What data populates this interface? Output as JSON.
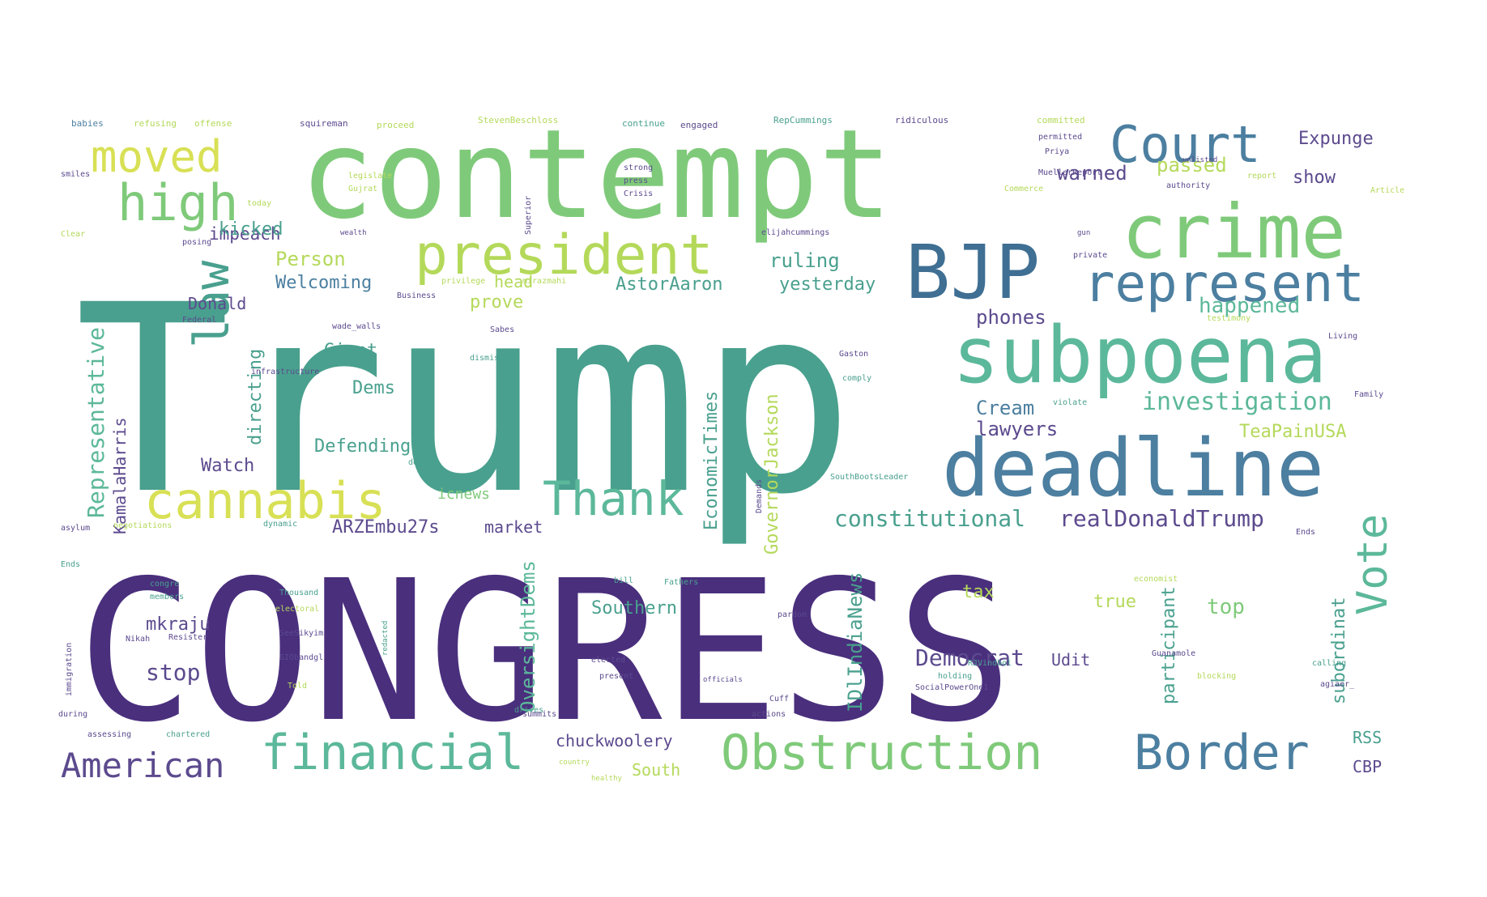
{
  "palette": {
    "dark_purple": "#4a2f7d",
    "purple": "#5c4a8e",
    "blue": "#3f6f93",
    "steel": "#4c7fa0",
    "teal": "#49a08e",
    "teal_light": "#5cb89a",
    "green": "#7fca7a",
    "lime": "#b4d95a",
    "yellow": "#d8e055"
  },
  "words": [
    {
      "text": "CONGRESS",
      "color": "dark_purple"
    },
    {
      "text": "Trump",
      "color": "teal"
    },
    {
      "text": "contempt",
      "color": "green"
    },
    {
      "text": "crime",
      "color": "green"
    },
    {
      "text": "subpoena",
      "color": "teal_light"
    },
    {
      "text": "deadline",
      "color": "steel"
    },
    {
      "text": "BJP",
      "color": "blue"
    },
    {
      "text": "president",
      "color": "lime"
    },
    {
      "text": "represent",
      "color": "steel"
    },
    {
      "text": "Court",
      "color": "steel"
    },
    {
      "text": "moved",
      "color": "yellow"
    },
    {
      "text": "high",
      "color": "green"
    },
    {
      "text": "cannabis",
      "color": "yellow"
    },
    {
      "text": "Thank",
      "color": "teal_light"
    },
    {
      "text": "law",
      "color": "teal"
    },
    {
      "text": "financial",
      "color": "teal_light"
    },
    {
      "text": "Obstruction",
      "color": "green"
    },
    {
      "text": "Border",
      "color": "steel"
    },
    {
      "text": "American",
      "color": "purple"
    },
    {
      "text": "Vote",
      "color": "teal_light"
    },
    {
      "text": "Expunge",
      "color": "purple"
    },
    {
      "text": "warned",
      "color": "purple"
    },
    {
      "text": "passed",
      "color": "lime"
    },
    {
      "text": "show",
      "color": "purple"
    },
    {
      "text": "impeach",
      "color": "purple"
    },
    {
      "text": "kicked",
      "color": "teal"
    },
    {
      "text": "Person",
      "color": "lime"
    },
    {
      "text": "Welcoming",
      "color": "steel"
    },
    {
      "text": "head",
      "color": "lime"
    },
    {
      "text": "AstorAaron",
      "color": "teal"
    },
    {
      "text": "ruling",
      "color": "teal"
    },
    {
      "text": "yesterday",
      "color": "teal"
    },
    {
      "text": "phones",
      "color": "purple"
    },
    {
      "text": "happened",
      "color": "teal_light"
    },
    {
      "text": "Donald",
      "color": "purple"
    },
    {
      "text": "prove",
      "color": "lime"
    },
    {
      "text": "investigation",
      "color": "teal_light"
    },
    {
      "text": "Cream",
      "color": "steel"
    },
    {
      "text": "lawyers",
      "color": "purple"
    },
    {
      "text": "TeaPainUSA",
      "color": "lime"
    },
    {
      "text": "Giant",
      "color": "teal"
    },
    {
      "text": "Dems",
      "color": "teal"
    },
    {
      "text": "Defending",
      "color": "teal"
    },
    {
      "text": "Watch",
      "color": "purple"
    },
    {
      "text": "Representative",
      "color": "teal_light"
    },
    {
      "text": "KamalaHarris",
      "color": "purple"
    },
    {
      "text": "directing",
      "color": "teal"
    },
    {
      "text": "EconomicTimes",
      "color": "teal"
    },
    {
      "text": "GovernorJackson",
      "color": "lime"
    },
    {
      "text": "constitutional",
      "color": "teal"
    },
    {
      "text": "realDonaldTrump",
      "color": "purple"
    },
    {
      "text": "ARZEmbu27s",
      "color": "purple"
    },
    {
      "text": "market",
      "color": "purple"
    },
    {
      "text": "icnews",
      "color": "green"
    },
    {
      "text": "tax",
      "color": "lime"
    },
    {
      "text": "true",
      "color": "lime"
    },
    {
      "text": "top",
      "color": "green"
    },
    {
      "text": "Southern",
      "color": "teal"
    },
    {
      "text": "participant",
      "color": "teal"
    },
    {
      "text": "subordinat",
      "color": "teal"
    },
    {
      "text": "mkraju",
      "color": "purple"
    },
    {
      "text": "stop",
      "color": "purple"
    },
    {
      "text": "Democrat",
      "color": "purple"
    },
    {
      "text": "Udit",
      "color": "purple"
    },
    {
      "text": "OversightDems",
      "color": "teal_light"
    },
    {
      "text": "IDlIndiaNews",
      "color": "teal"
    },
    {
      "text": "chuckwoolery",
      "color": "purple"
    },
    {
      "text": "South",
      "color": "lime"
    },
    {
      "text": "RSS",
      "color": "teal"
    },
    {
      "text": "CBP",
      "color": "purple"
    },
    {
      "text": "babies",
      "color": "steel"
    },
    {
      "text": "refusing",
      "color": "lime"
    },
    {
      "text": "offense",
      "color": "lime"
    },
    {
      "text": "squireman",
      "color": "purple"
    },
    {
      "text": "proceed",
      "color": "lime"
    },
    {
      "text": "StevenBeschloss",
      "color": "lime"
    },
    {
      "text": "continue",
      "color": "teal"
    },
    {
      "text": "engaged",
      "color": "purple"
    },
    {
      "text": "RepCummings",
      "color": "teal"
    },
    {
      "text": "ridiculous",
      "color": "purple"
    },
    {
      "text": "committed",
      "color": "lime"
    },
    {
      "text": "permitted",
      "color": "purple"
    },
    {
      "text": "Priya",
      "color": "purple"
    },
    {
      "text": "Gujrat",
      "color": "lime"
    },
    {
      "text": "legislate",
      "color": "lime"
    },
    {
      "text": "wealth",
      "color": "purple"
    },
    {
      "text": "elijahcummings",
      "color": "purple"
    },
    {
      "text": "MuellerReport",
      "color": "purple"
    },
    {
      "text": "authority",
      "color": "purple"
    },
    {
      "text": "Article",
      "color": "lime"
    },
    {
      "text": "private",
      "color": "purple"
    },
    {
      "text": "Federal",
      "color": "purple"
    },
    {
      "text": "Business",
      "color": "purple"
    },
    {
      "text": "privilege",
      "color": "lime"
    },
    {
      "text": "mirazmahi",
      "color": "lime"
    },
    {
      "text": "infrastructure",
      "color": "purple"
    },
    {
      "text": "wade_walls",
      "color": "purple"
    },
    {
      "text": "dismisses",
      "color": "teal"
    },
    {
      "text": "Sabes",
      "color": "purple"
    },
    {
      "text": "Gaston",
      "color": "purple"
    },
    {
      "text": "comply",
      "color": "teal"
    },
    {
      "text": "violate",
      "color": "teal"
    },
    {
      "text": "Central",
      "color": "teal"
    },
    {
      "text": "Family",
      "color": "purple"
    },
    {
      "text": "Living",
      "color": "purple"
    },
    {
      "text": "SouthBootsLeader",
      "color": "teal"
    },
    {
      "text": "defend",
      "color": "teal"
    },
    {
      "text": "Demands",
      "color": "purple"
    },
    {
      "text": "asylum",
      "color": "purple"
    },
    {
      "text": "dynamic",
      "color": "teal"
    },
    {
      "text": "negotiations",
      "color": "lime"
    },
    {
      "text": "Thousand",
      "color": "teal"
    },
    {
      "text": "congre",
      "color": "teal"
    },
    {
      "text": "members",
      "color": "teal"
    },
    {
      "text": "electoral",
      "color": "lime"
    },
    {
      "text": "SeeSikyim",
      "color": "purple"
    },
    {
      "text": "GIObandgl",
      "color": "purple"
    },
    {
      "text": "redacted",
      "color": "teal"
    },
    {
      "text": "elected",
      "color": "purple"
    },
    {
      "text": "present",
      "color": "purple"
    },
    {
      "text": "officials",
      "color": "purple"
    },
    {
      "text": "pardon",
      "color": "purple"
    },
    {
      "text": "Fathers",
      "color": "teal"
    },
    {
      "text": "bill",
      "color": "teal"
    },
    {
      "text": "economist",
      "color": "lime"
    },
    {
      "text": "Guanamole",
      "color": "purple"
    },
    {
      "text": "holding",
      "color": "teal"
    },
    {
      "text": "SocialPowerOne1",
      "color": "purple"
    },
    {
      "text": "RJVindbol",
      "color": "teal"
    },
    {
      "text": "blocking",
      "color": "lime"
    },
    {
      "text": "calling",
      "color": "teal"
    },
    {
      "text": "agiaer_",
      "color": "purple"
    },
    {
      "text": "Nikah",
      "color": "purple"
    },
    {
      "text": "Resister",
      "color": "purple"
    },
    {
      "text": "Told",
      "color": "lime"
    },
    {
      "text": "drives",
      "color": "teal"
    },
    {
      "text": "actions",
      "color": "purple"
    },
    {
      "text": "Cuff",
      "color": "purple"
    },
    {
      "text": "summits",
      "color": "purple"
    },
    {
      "text": "during",
      "color": "purple"
    },
    {
      "text": "assessing",
      "color": "purple"
    },
    {
      "text": "chartered",
      "color": "teal"
    },
    {
      "text": "country",
      "color": "lime"
    },
    {
      "text": "healthy",
      "color": "lime"
    },
    {
      "text": "immigration",
      "color": "purple"
    },
    {
      "text": "Ends",
      "color": "teal"
    },
    {
      "text": "Clear",
      "color": "lime"
    },
    {
      "text": "smiles",
      "color": "purple"
    },
    {
      "text": "posing",
      "color": "purple"
    },
    {
      "text": "today",
      "color": "lime"
    },
    {
      "text": "Superior",
      "color": "purple"
    },
    {
      "text": "strong",
      "color": "purple"
    },
    {
      "text": "press",
      "color": "purple"
    },
    {
      "text": "Crisis",
      "color": "purple"
    },
    {
      "text": "Commerce",
      "color": "lime"
    },
    {
      "text": "report",
      "color": "lime"
    },
    {
      "text": "gun",
      "color": "purple"
    },
    {
      "text": "unlisted",
      "color": "purple"
    },
    {
      "text": "testimony",
      "color": "lime"
    },
    {
      "text": "Ends",
      "color": "purple"
    }
  ]
}
